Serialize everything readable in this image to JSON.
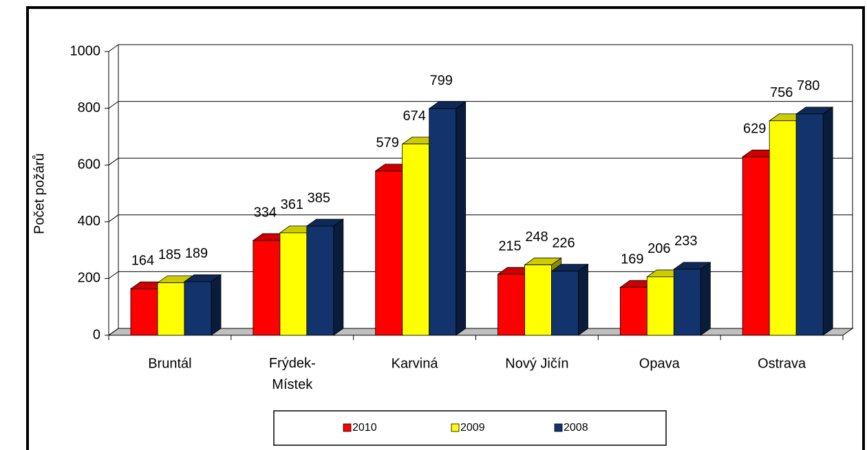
{
  "chart_data": {
    "type": "bar3d",
    "y_label": "Počet požárů",
    "categories": [
      "Bruntál",
      "Frýdek-Místek",
      "Karviná",
      "Nový Jičín",
      "Opava",
      "Ostrava"
    ],
    "series": [
      {
        "name": "2010",
        "color": "#ff0000",
        "values": [
          164,
          334,
          579,
          215,
          169,
          629
        ]
      },
      {
        "name": "2009",
        "color": "#ffff00",
        "values": [
          185,
          361,
          674,
          248,
          206,
          756
        ]
      },
      {
        "name": "2008",
        "color": "#12336b",
        "values": [
          189,
          385,
          799,
          226,
          233,
          780
        ]
      }
    ],
    "ylim": [
      0,
      1000
    ],
    "yticks": [
      0,
      200,
      400,
      600,
      800,
      1000
    ],
    "grid": true,
    "legend": "bottom"
  }
}
